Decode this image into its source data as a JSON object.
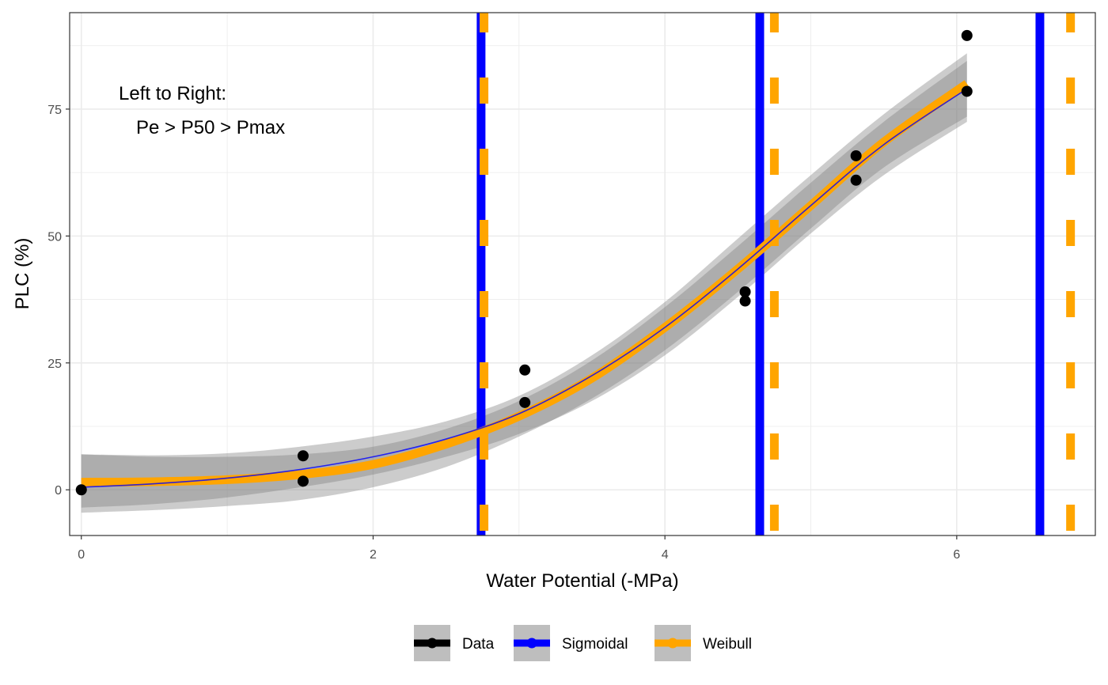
{
  "chart_data": {
    "type": "scatter",
    "xlabel": "Water Potential (-MPa)",
    "ylabel": "PLC (%)",
    "xlim": [
      -0.08,
      6.95
    ],
    "ylim": [
      -9,
      94
    ],
    "x_ticks": [
      0,
      2,
      4,
      6
    ],
    "y_ticks": [
      0,
      25,
      50,
      75
    ],
    "x_tick_labels": [
      "0",
      "2",
      "4",
      "6"
    ],
    "y_tick_labels": [
      "0",
      "25",
      "50",
      "75"
    ],
    "grid": true,
    "annotation": [
      "Left to Right:",
      "Pe > P50 > Pmax"
    ],
    "legend_position": "bottom",
    "legend": [
      {
        "label": "Data",
        "color": "#000000"
      },
      {
        "label": "Sigmoidal",
        "color": "#0000ff"
      },
      {
        "label": "Weibull",
        "color": "#ffa500"
      }
    ],
    "colors": {
      "data": "#000000",
      "sigmoidal": "#0000ff",
      "weibull": "#ffa500",
      "ribbon": "#7f7f7f"
    },
    "series": [
      {
        "name": "Data",
        "kind": "points",
        "x": [
          0,
          1.52,
          1.52,
          3.04,
          3.04,
          4.55,
          4.55,
          5.31,
          5.31,
          6.07,
          6.07
        ],
        "y": [
          0,
          6.7,
          1.7,
          23.6,
          17.2,
          39.0,
          37.2,
          65.8,
          61.0,
          89.5,
          78.5
        ]
      },
      {
        "name": "Sigmoidal",
        "kind": "curve",
        "x": [
          0,
          0.5,
          1.0,
          1.5,
          2.0,
          2.5,
          3.0,
          3.5,
          4.0,
          4.5,
          5.0,
          5.5,
          6.07
        ],
        "y": [
          0.5,
          1.2,
          2.3,
          4.0,
          6.5,
          10.0,
          15.0,
          22.5,
          32.0,
          43.5,
          56.0,
          68.0,
          79.0
        ],
        "ribbon_lower": [
          -3.5,
          -2.8,
          -1.5,
          0.5,
          3.0,
          6.5,
          11.0,
          17.5,
          26.5,
          38.0,
          50.5,
          62.0,
          72.5
        ],
        "ribbon_upper": [
          7.0,
          6.8,
          7.2,
          8.5,
          10.5,
          13.5,
          18.5,
          26.5,
          37.0,
          49.5,
          62.0,
          74.0,
          86.0
        ],
        "vlines": [
          2.74,
          4.65,
          6.57
        ]
      },
      {
        "name": "Weibull",
        "kind": "curve",
        "x": [
          0,
          0.5,
          1.0,
          1.5,
          2.0,
          2.5,
          3.0,
          3.5,
          4.0,
          4.5,
          5.0,
          5.5,
          6.07
        ],
        "y": [
          1.5,
          1.6,
          2.0,
          3.0,
          5.0,
          9.0,
          14.5,
          22.0,
          32.0,
          43.5,
          56.0,
          68.5,
          80.0
        ],
        "ribbon_lower": [
          -4.5,
          -4.0,
          -3.2,
          -2.0,
          0.5,
          4.5,
          10.5,
          18.0,
          27.5,
          39.0,
          51.5,
          63.5,
          73.5
        ],
        "ribbon_upper": [
          7.0,
          6.5,
          6.5,
          7.0,
          8.5,
          12.0,
          17.5,
          25.5,
          36.0,
          48.0,
          60.5,
          72.5,
          84.5
        ],
        "vlines": [
          2.76,
          4.75,
          6.78
        ]
      }
    ]
  }
}
